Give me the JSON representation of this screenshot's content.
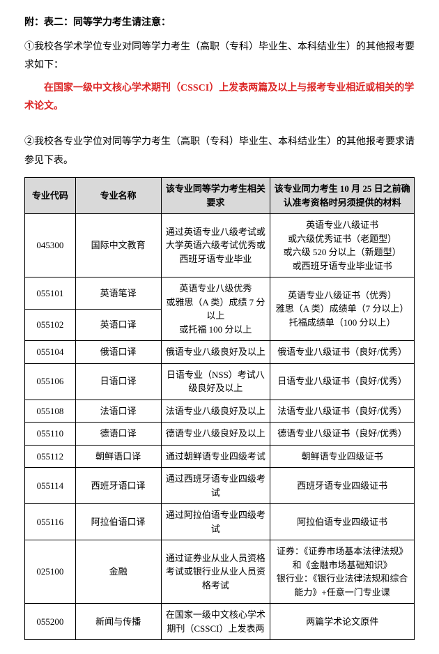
{
  "header": {
    "title": "附：表二：同等学力考生请注意：",
    "para1": "①我校各学术学位专业对同等学力考生（高职（专科）毕业生、本科结业生）的其他报考要求如下：",
    "red_line": "在国家一级中文核心学术期刊（CSSCI）上发表两篇及以上与报考专业相近或相关的学术论文。",
    "para2": "②我校各专业学位对同等学力考生（高职（专科）毕业生、本科结业生）的其他报考要求请参见下表。"
  },
  "table": {
    "headers": {
      "code": "专业代码",
      "name": "专业名称",
      "req": "该专业同等学力考生相关要求",
      "material": "该专业同力考生 10 月 25 日之前确认准考资格时另须提供的材料"
    },
    "rows": [
      {
        "code": "045300",
        "name": "国际中文教育",
        "req": "通过英语专业八级考试或大学英语六级考试优秀或西班牙语专业毕业",
        "mat": "英语专业八级证书\n或六级优秀证书（老题型）\n或六级 520 分以上（新题型）\n或西班牙语专业毕业证书"
      },
      {
        "code": "055101",
        "name": "英语笔译",
        "req": "英语专业八级优秀\n或雅思（A 类）成绩 7 分以上\n或托福 100 分以上",
        "mat": "英语专业八级证书（优秀）\n雅思（A 类）成绩单（7 分以上）\n托福成绩单（100 分以上）",
        "merge_req_down": true,
        "merge_mat_down": true
      },
      {
        "code": "055102",
        "name": "英语口译"
      },
      {
        "code": "055104",
        "name": "俄语口译",
        "req": "俄语专业八级良好及以上",
        "mat": "俄语专业八级证书（良好/优秀）"
      },
      {
        "code": "055106",
        "name": "日语口译",
        "req": "日语专业（NSS）考试八级良好及以上",
        "mat": "日语专业八级证书（良好/优秀）"
      },
      {
        "code": "055108",
        "name": "法语口译",
        "req": "法语专业八级良好及以上",
        "mat": "法语专业八级证书（良好/优秀）"
      },
      {
        "code": "055110",
        "name": "德语口译",
        "req": "德语专业八级良好及以上",
        "mat": "德语专业八级证书（良好/优秀）"
      },
      {
        "code": "055112",
        "name": "朝鲜语口译",
        "req": "通过朝鲜语专业四级考试",
        "mat": "朝鲜语专业四级证书"
      },
      {
        "code": "055114",
        "name": "西班牙语口译",
        "req": "通过西班牙语专业四级考试",
        "mat": "西班牙语专业四级证书"
      },
      {
        "code": "055116",
        "name": "阿拉伯语口译",
        "req": "通过阿拉伯语专业四级考试",
        "mat": "阿拉伯语专业四级证书"
      },
      {
        "code": "025100",
        "name": "金融",
        "req": "通过证券业从业人员资格考试或银行业从业人员资格考试",
        "mat": "证券：《证券市场基本法律法规》和《金融市场基础知识》\n银行业：《银行业法律法规和综合能力》+任意一门专业课"
      },
      {
        "code": "055200",
        "name": "新闻与传播",
        "req": "在国家一级中文核心学术期刊（CSSCI）上发表两",
        "mat": "两篇学术论文原件"
      }
    ]
  }
}
